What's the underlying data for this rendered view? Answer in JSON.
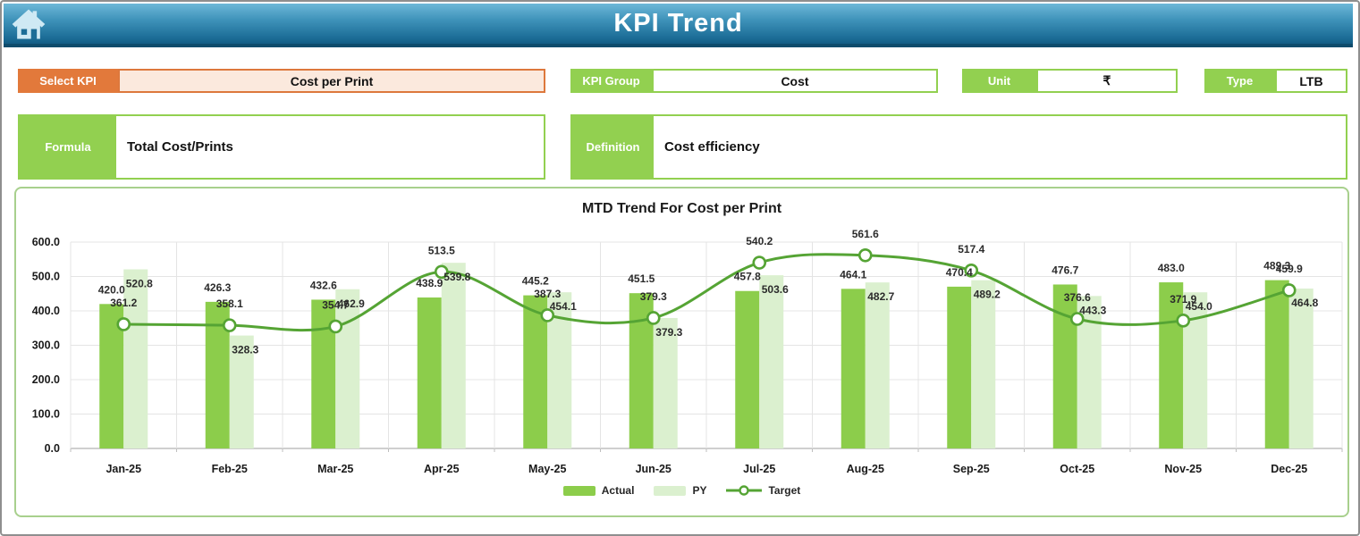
{
  "header": {
    "title": "KPI Trend",
    "home_icon": "home-icon"
  },
  "controls": {
    "select_kpi": {
      "label": "Select KPI",
      "value": "Cost per Print"
    },
    "kpi_group": {
      "label": "KPI Group",
      "value": "Cost"
    },
    "unit": {
      "label": "Unit",
      "value": "₹"
    },
    "type": {
      "label": "Type",
      "value": "LTB"
    }
  },
  "formula": {
    "label": "Formula",
    "value": "Total Cost/Prints"
  },
  "definition": {
    "label": "Definition",
    "value": "Cost efficiency"
  },
  "colors": {
    "actual": "#8ccd4b",
    "py": "#dbf0cf",
    "target_line": "#55a434",
    "accent_green": "#92d050",
    "accent_orange": "#e2793b",
    "header_blue": "#1c6d97",
    "gridline": "#e4e4e4",
    "axis_line": "#bfbfbf",
    "label_text": "#2b2b2b"
  },
  "chart_data": {
    "type": "bar",
    "subtype": "combo-bar-line",
    "title": "MTD Trend For Cost per Print",
    "categories": [
      "Jan-25",
      "Feb-25",
      "Mar-25",
      "Apr-25",
      "May-25",
      "Jun-25",
      "Jul-25",
      "Aug-25",
      "Sep-25",
      "Oct-25",
      "Nov-25",
      "Dec-25"
    ],
    "series": [
      {
        "name": "Actual",
        "type": "bar",
        "color": "#8ccd4b",
        "values": [
          420.0,
          426.3,
          432.6,
          438.9,
          445.2,
          451.5,
          457.8,
          464.1,
          470.4,
          476.7,
          483.0,
          489.3
        ]
      },
      {
        "name": "PY",
        "type": "bar",
        "color": "#dbf0cf",
        "values": [
          520.8,
          328.3,
          462.9,
          539.8,
          454.1,
          379.3,
          503.6,
          482.7,
          489.2,
          443.3,
          454.0,
          464.8
        ]
      },
      {
        "name": "Target",
        "type": "line",
        "color": "#55a434",
        "values": [
          361.2,
          358.1,
          354.7,
          513.5,
          387.3,
          379.3,
          540.2,
          561.6,
          517.4,
          376.6,
          371.9,
          459.9
        ]
      }
    ],
    "xlabel": "",
    "ylabel": "",
    "ylim": [
      0,
      600
    ],
    "yticks": [
      "0.0",
      "100.0",
      "200.0",
      "300.0",
      "400.0",
      "500.0",
      "600.0"
    ],
    "grid": true,
    "legend_position": "bottom"
  }
}
